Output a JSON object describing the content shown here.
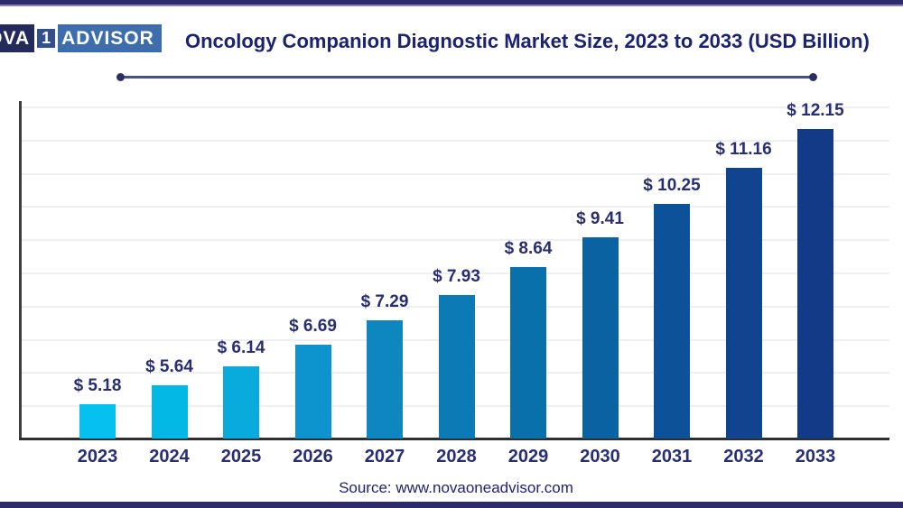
{
  "page": {
    "title": "Oncology Companion Diagnostic Market Size, 2023 to 2033 (USD Billion)",
    "source_text": "Source: www.novaoneadvisor.com"
  },
  "logo": {
    "part1": "NOVA",
    "part2": "1",
    "part3": "ADVISOR"
  },
  "colors": {
    "navy_text": "#272e74",
    "title_text": "#1b2272",
    "top_bottom_bar": "#2e2b6b",
    "underline": "#44518b",
    "gridline": "#efeff2",
    "axis": "#2e2e30"
  },
  "chart_data": {
    "type": "bar",
    "title": "Oncology Companion Diagnostic Market Size, 2023 to 2033 (USD Billion)",
    "categories": [
      "2023",
      "2024",
      "2025",
      "2026",
      "2027",
      "2028",
      "2029",
      "2030",
      "2031",
      "2032",
      "2033"
    ],
    "values": [
      5.18,
      5.64,
      6.14,
      6.69,
      7.29,
      7.93,
      8.64,
      9.41,
      10.25,
      11.16,
      12.15
    ],
    "value_labels": [
      "$ 5.18",
      "$ 5.64",
      "$ 6.14",
      "$ 6.69",
      "$ 7.29",
      "$ 7.93",
      "$ 8.64",
      "$ 9.41",
      "$ 10.25",
      "$ 11.16",
      "$ 12.15"
    ],
    "bar_colors": [
      "#06c1ef",
      "#04b8e6",
      "#08abdc",
      "#0d94ce",
      "#0e86c0",
      "#0c7ab4",
      "#0a70a9",
      "#0b62a2",
      "#0d5198",
      "#11448e",
      "#133a86"
    ],
    "xlabel": "",
    "ylabel": "",
    "ylim": [
      4.3,
      12.9
    ],
    "grid": "horizontal",
    "legend": "none",
    "data_label_prefix": "$ "
  }
}
